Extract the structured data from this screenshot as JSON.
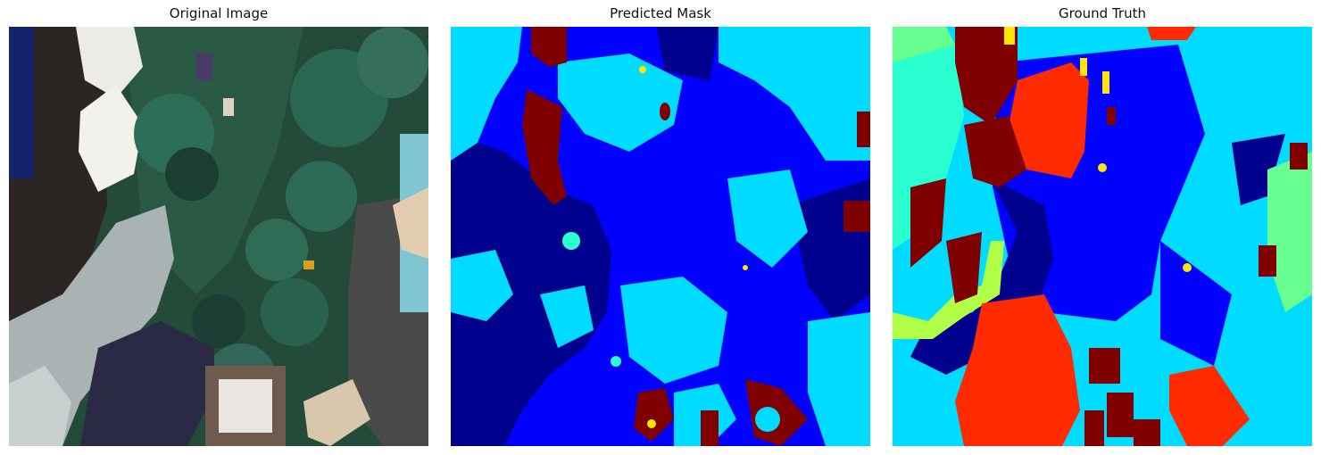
{
  "panels": [
    {
      "title": "Original Image"
    },
    {
      "title": "Predicted Mask"
    },
    {
      "title": "Ground Truth"
    }
  ],
  "colors": {
    "navy": "#00008f",
    "blue": "#0000ff",
    "cyan": "#00dcff",
    "aqua": "#29ffcf",
    "green_yellow": "#b0ff46",
    "yellow": "#ffe600",
    "red": "#ff2a00",
    "maroon": "#800000",
    "grass": "#1f4a3a",
    "tree": "#2c6b55",
    "pavement": "#9aa6a8",
    "roof_dark": "#2b2524",
    "umbrella": "#ecebe6",
    "water": "#7fc6d2"
  }
}
